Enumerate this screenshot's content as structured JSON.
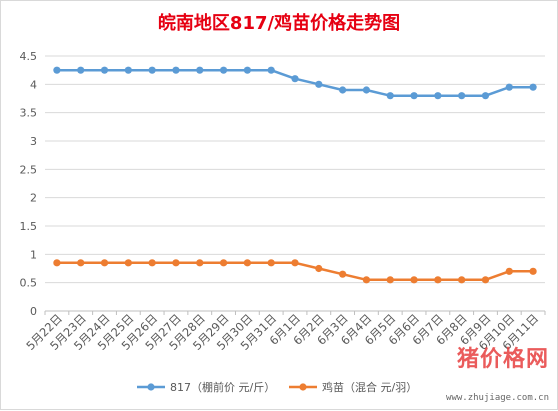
{
  "chart_data": {
    "type": "line",
    "title": "皖南地区817/鸡苗价格走势图",
    "categories": [
      "5月22日",
      "5月23日",
      "5月24日",
      "5月25日",
      "5月26日",
      "5月27日",
      "5月28日",
      "5月29日",
      "5月30日",
      "5月31日",
      "6月1日",
      "6月2日",
      "6月3日",
      "6月4日",
      "6月5日",
      "6月6日",
      "6月7日",
      "6月8日",
      "6月9日",
      "6月10日",
      "6月11日"
    ],
    "series": [
      {
        "name": "817（棚前价 元/斤）",
        "color": "#5b9bd5",
        "values": [
          4.25,
          4.25,
          4.25,
          4.25,
          4.25,
          4.25,
          4.25,
          4.25,
          4.25,
          4.25,
          4.1,
          4.0,
          3.9,
          3.9,
          3.8,
          3.8,
          3.8,
          3.8,
          3.8,
          3.95,
          3.95
        ]
      },
      {
        "name": "鸡苗（混合 元/羽）",
        "color": "#ed7d31",
        "values": [
          0.85,
          0.85,
          0.85,
          0.85,
          0.85,
          0.85,
          0.85,
          0.85,
          0.85,
          0.85,
          0.85,
          0.75,
          0.65,
          0.55,
          0.55,
          0.55,
          0.55,
          0.55,
          0.55,
          0.7,
          0.7
        ]
      }
    ],
    "ylim": [
      0,
      4.5
    ],
    "yticks": [
      "0",
      "0.5",
      "1",
      "1.5",
      "2",
      "2.5",
      "3",
      "3.5",
      "4",
      "4.5"
    ],
    "grid": true,
    "legend": "bottom"
  },
  "watermark": {
    "brand": "猪价格网",
    "url": "www.zhujiage.com.cn"
  }
}
